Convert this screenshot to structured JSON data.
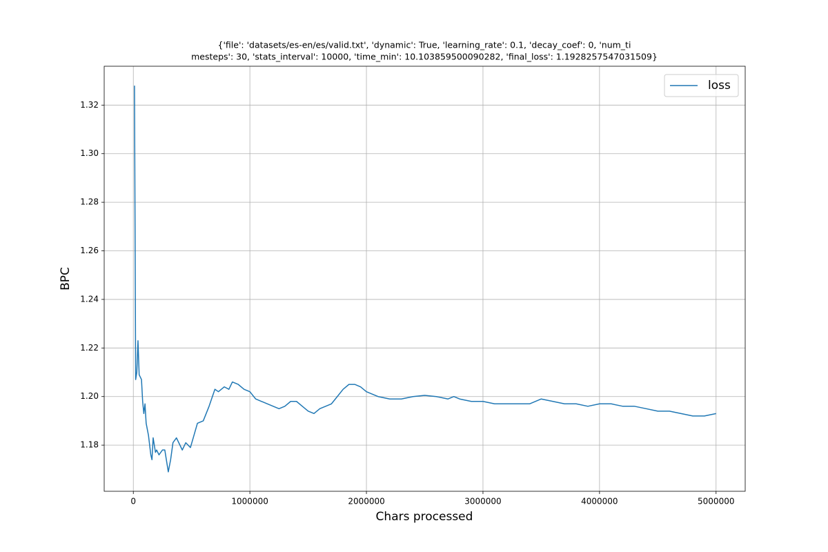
{
  "chart_data": {
    "type": "line",
    "title": [
      "{'file': 'datasets/es-en/es/valid.txt', 'dynamic': True, 'learning_rate': 0.1, 'decay_coef': 0, 'num_ti",
      "mesteps': 30, 'stats_interval': 10000, 'time_min': 10.103859500090282, 'final_loss': 1.1928257547031509}"
    ],
    "xlabel": "Chars processed",
    "ylabel": "BPC",
    "x": [
      10000,
      20000,
      30000,
      40000,
      50000,
      70000,
      80000,
      90000,
      100000,
      110000,
      130000,
      150000,
      160000,
      170000,
      190000,
      200000,
      220000,
      250000,
      270000,
      290000,
      300000,
      320000,
      340000,
      370000,
      400000,
      420000,
      450000,
      490000,
      520000,
      550000,
      600000,
      650000,
      700000,
      730000,
      780000,
      820000,
      850000,
      900000,
      950000,
      1000000,
      1050000,
      1100000,
      1200000,
      1250000,
      1300000,
      1350000,
      1400000,
      1450000,
      1500000,
      1550000,
      1600000,
      1700000,
      1750000,
      1800000,
      1850000,
      1900000,
      1950000,
      2000000,
      2100000,
      2200000,
      2300000,
      2400000,
      2500000,
      2600000,
      2700000,
      2750000,
      2800000,
      2900000,
      3000000,
      3100000,
      3200000,
      3300000,
      3400000,
      3500000,
      3600000,
      3700000,
      3800000,
      3900000,
      4000000,
      4100000,
      4200000,
      4300000,
      4400000,
      4500000,
      4600000,
      4700000,
      4800000,
      4900000,
      5000000
    ],
    "series": [
      {
        "name": "loss",
        "color": "#1f77b4",
        "values": [
          1.328,
          1.207,
          1.21,
          1.223,
          1.209,
          1.207,
          1.198,
          1.193,
          1.197,
          1.189,
          1.184,
          1.176,
          1.174,
          1.183,
          1.177,
          1.178,
          1.176,
          1.178,
          1.178,
          1.172,
          1.169,
          1.174,
          1.181,
          1.183,
          1.18,
          1.178,
          1.181,
          1.179,
          1.184,
          1.189,
          1.19,
          1.196,
          1.203,
          1.202,
          1.204,
          1.203,
          1.206,
          1.205,
          1.203,
          1.202,
          1.199,
          1.198,
          1.196,
          1.195,
          1.196,
          1.198,
          1.198,
          1.196,
          1.194,
          1.193,
          1.195,
          1.197,
          1.2,
          1.203,
          1.205,
          1.205,
          1.204,
          1.202,
          1.2,
          1.199,
          1.199,
          1.2,
          1.2005,
          1.2,
          1.199,
          1.2,
          1.199,
          1.198,
          1.198,
          1.197,
          1.197,
          1.197,
          1.197,
          1.199,
          1.198,
          1.197,
          1.197,
          1.196,
          1.197,
          1.197,
          1.196,
          1.196,
          1.195,
          1.194,
          1.194,
          1.193,
          1.192,
          1.192,
          1.193
        ]
      }
    ],
    "xlim": [
      -250000,
      5250000
    ],
    "xticks": [
      0,
      1000000,
      2000000,
      3000000,
      4000000,
      5000000
    ],
    "ylim": [
      1.161,
      1.336
    ],
    "yticks": [
      1.18,
      {
        "value": 1.2,
        "label": "1.20"
      },
      1.22,
      1.24,
      1.26,
      1.28,
      {
        "value": 1.3,
        "label": "1.30"
      },
      1.32
    ],
    "grid": true,
    "legend": "upper right"
  }
}
